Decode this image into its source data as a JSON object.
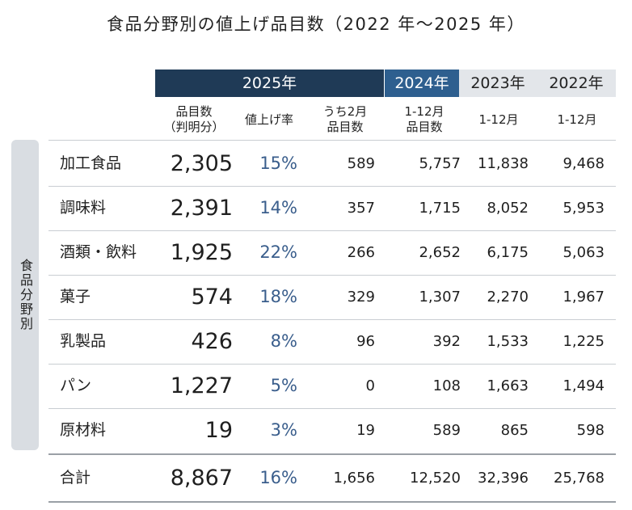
{
  "title": "食品分野別の値上げ品目数（2022 年～2025 年）",
  "chart_data": {
    "type": "table",
    "year_headers": [
      "2025年",
      "2024年",
      "2023年",
      "2022年"
    ],
    "sub_headers": {
      "count": "品目数\n（判明分）",
      "rate": "値上げ率",
      "feb": "うち2月\n品目数",
      "y2024": "1-12月\n品目数",
      "y2023": "1-12月",
      "y2022": "1-12月"
    },
    "row_group_label": "食品分野別",
    "rows": [
      {
        "category": "加工食品",
        "count": "2,305",
        "rate": "15%",
        "feb": "589",
        "y2024": "5,757",
        "y2023": "11,838",
        "y2022": "9,468"
      },
      {
        "category": "調味料",
        "count": "2,391",
        "rate": "14%",
        "feb": "357",
        "y2024": "1,715",
        "y2023": "8,052",
        "y2022": "5,953"
      },
      {
        "category": "酒類・飲料",
        "count": "1,925",
        "rate": "22%",
        "feb": "266",
        "y2024": "2,652",
        "y2023": "6,175",
        "y2022": "5,063"
      },
      {
        "category": "菓子",
        "count": "574",
        "rate": "18%",
        "feb": "329",
        "y2024": "1,307",
        "y2023": "2,270",
        "y2022": "1,967"
      },
      {
        "category": "乳製品",
        "count": "426",
        "rate": "8%",
        "feb": "96",
        "y2024": "392",
        "y2023": "1,533",
        "y2022": "1,225"
      },
      {
        "category": "パン",
        "count": "1,227",
        "rate": "5%",
        "feb": "0",
        "y2024": "108",
        "y2023": "1,663",
        "y2022": "1,494"
      },
      {
        "category": "原材料",
        "count": "19",
        "rate": "3%",
        "feb": "19",
        "y2024": "589",
        "y2023": "865",
        "y2022": "598"
      }
    ],
    "total": {
      "category": "合計",
      "count": "8,867",
      "rate": "16%",
      "feb": "1,656",
      "y2024": "12,520",
      "y2023": "32,396",
      "y2022": "25,768"
    }
  },
  "colors": {
    "header_2025": "#1f3a56",
    "header_2024": "#2e5f8f",
    "header_past": "#e3e6ea",
    "rate_text": "#3a5e8c",
    "sidebar": "#d9dde2"
  }
}
